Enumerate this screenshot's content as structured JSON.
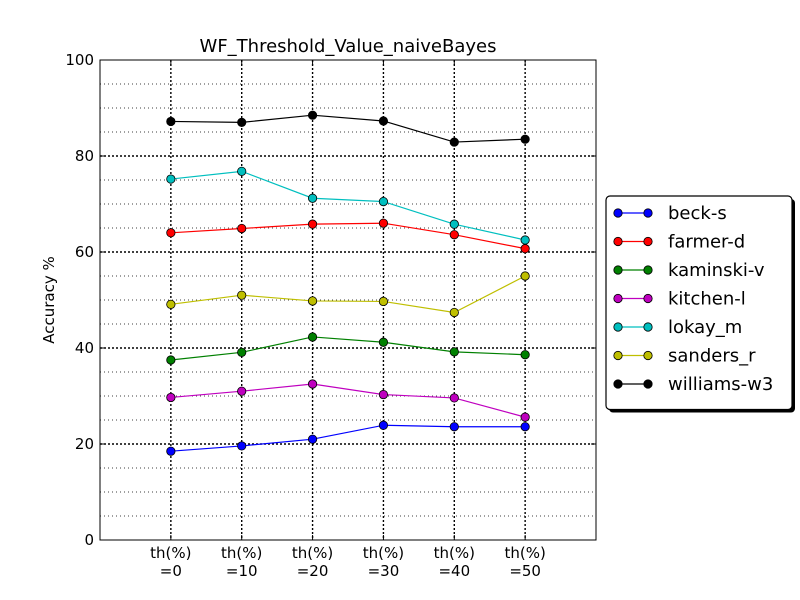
{
  "chart_data": {
    "type": "line",
    "title": "WF_Threshold_Value_naiveBayes",
    "xlabel": "",
    "ylabel": "Accuracy %",
    "categories": [
      [
        "th(%)",
        "=0"
      ],
      [
        "th(%)",
        "=10"
      ],
      [
        "th(%)",
        "=20"
      ],
      [
        "th(%)",
        "=30"
      ],
      [
        "th(%)",
        "=40"
      ],
      [
        "th(%)",
        "=50"
      ]
    ],
    "ylim": [
      0,
      100
    ],
    "yticks": [
      0,
      20,
      40,
      60,
      80,
      100
    ],
    "ytick_labels": [
      "0",
      "20",
      "40",
      "60",
      "80",
      "100"
    ],
    "grid": true,
    "legend_position": "right",
    "series": [
      {
        "name": "beck-s",
        "color": "#0000ff",
        "values": [
          18.5,
          19.6,
          21.0,
          23.9,
          23.6,
          23.6
        ]
      },
      {
        "name": "farmer-d",
        "color": "#ff0000",
        "values": [
          64.0,
          64.9,
          65.8,
          66.0,
          63.6,
          60.7
        ]
      },
      {
        "name": "kaminski-v",
        "color": "#008000",
        "values": [
          37.5,
          39.1,
          42.3,
          41.2,
          39.2,
          38.6
        ]
      },
      {
        "name": "kitchen-l",
        "color": "#bf00bf",
        "values": [
          29.7,
          31.0,
          32.5,
          30.3,
          29.6,
          25.6
        ]
      },
      {
        "name": "lokay_m",
        "color": "#00bfbf",
        "values": [
          75.2,
          76.8,
          71.2,
          70.5,
          65.8,
          62.5
        ]
      },
      {
        "name": "sanders_r",
        "color": "#bfbf00",
        "values": [
          49.1,
          51.0,
          49.8,
          49.7,
          47.4,
          55.0
        ]
      },
      {
        "name": "williams-w3",
        "color": "#000000",
        "values": [
          87.2,
          87.0,
          88.5,
          87.3,
          82.9,
          83.5
        ]
      }
    ]
  }
}
